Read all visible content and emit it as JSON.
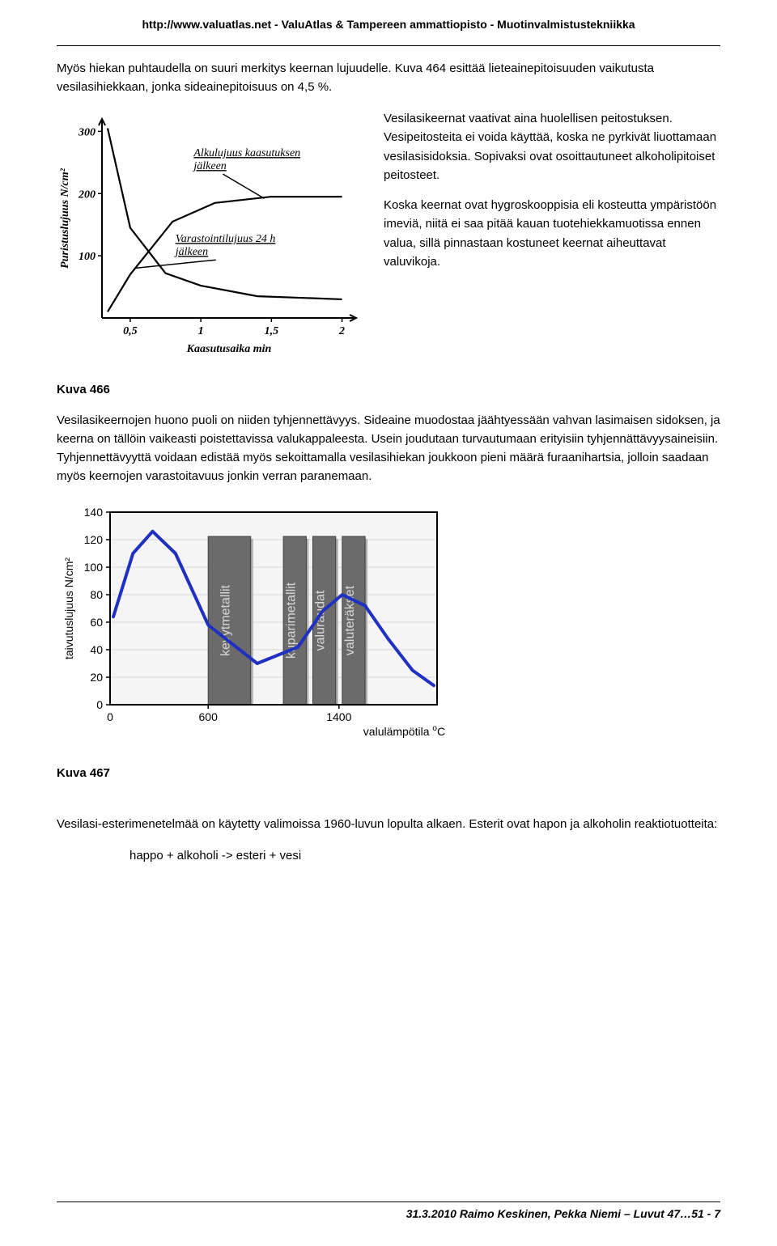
{
  "header": {
    "url": "http://www.valuatlas.net - ValuAtlas & Tampereen ammattiopisto - Muotinvalmistustekniikka"
  },
  "intro": {
    "p1": "Myös hiekan puhtaudella on suuri merkitys keernan lujuudelle. Kuva 464 esittää lieteainepitoisuuden vaikutusta vesilasihiekkaan, jonka sideainepitoisuus on 4,5 %."
  },
  "chart1": {
    "type": "line",
    "ylabel": "Puristuslujuus N/cm²",
    "xlabel": "Kaasutusaika min",
    "ylim": [
      0,
      320
    ],
    "ytick_step": 100,
    "xlim": [
      0.3,
      2.1
    ],
    "xticks": [
      0.5,
      1,
      1.5,
      2
    ],
    "label1": "Alkulujuus kaasutuksen jälkeen",
    "label2": "Varastointilujuus 24 h jälkeen",
    "line1_x": [
      0.34,
      0.5,
      0.75,
      1.0,
      1.4,
      2.0
    ],
    "line1_y": [
      305,
      145,
      72,
      52,
      35,
      30
    ],
    "line2_x": [
      0.34,
      0.5,
      0.8,
      1.1,
      1.5,
      2.0
    ],
    "line2_y": [
      10,
      70,
      155,
      185,
      195,
      195
    ],
    "stroke": "#000000",
    "font_style": "italic"
  },
  "right_col": {
    "p1": "Vesilasikeernat vaativat aina huolellisen peitostuksen. Vesipeitosteita ei voida käyttää, koska ne pyrkivät liuottamaan vesilasisidoksia. Sopivaksi ovat osoittautuneet alkoholipitoiset peitosteet.",
    "p2": "Koska keernat ovat hygroskooppisia eli kosteutta ympäristöön imeviä, niitä ei saa pitää kauan tuotehiekkamuotissa ennen valua, sillä pinnastaan kostuneet keernat aiheuttavat valuvikoja."
  },
  "fig1_label": "Kuva 466",
  "body": {
    "p1": "Vesilasikeernojen huono puoli on niiden tyhjennettävyys. Sideaine muodostaa jäähtyessään vahvan lasimaisen sidoksen, ja keerna on tällöin vaikeasti poistettavissa valukappaleesta. Usein joudutaan turvautumaan erityisiin tyhjennättävyysaineisiin. Tyhjennettävyyttä voidaan edistää myös sekoittamalla vesilasihiekan joukkoon pieni määrä furaanihartsia, jolloin saadaan myös keernojen varastoitavuus jonkin verran paranemaan."
  },
  "chart2": {
    "type": "line-bars",
    "ylabel": "taivutuslujuus N/cm²",
    "xlabel": "valulämpötila °C",
    "ylim": [
      0,
      140
    ],
    "ytick_step": 20,
    "xlim": [
      0,
      2000
    ],
    "xticks": [
      600,
      1400
    ],
    "background_color": "#ffffff",
    "plot_bg": "#f5f5f5",
    "grid_color": "#d8d8d8",
    "line_color": "#2030c0",
    "line_width": 4,
    "line_x": [
      20,
      140,
      260,
      400,
      600,
      900,
      1150,
      1300,
      1420,
      1560,
      1700,
      1850,
      1980
    ],
    "line_y": [
      64,
      110,
      126,
      110,
      58,
      30,
      42,
      68,
      80,
      72,
      48,
      25,
      14
    ],
    "bars": [
      {
        "label": "kevytmetallit",
        "x0": 600,
        "x1": 860,
        "fill": "#6b6b6b"
      },
      {
        "label": "kuparimetallit",
        "x0": 1060,
        "x1": 1200,
        "fill": "#6b6b6b"
      },
      {
        "label": "valuraudat",
        "x0": 1240,
        "x1": 1380,
        "fill": "#6b6b6b"
      },
      {
        "label": "valuteräkset",
        "x0": 1420,
        "x1": 1560,
        "fill": "#6b6b6b"
      }
    ],
    "bar_text_color": "#d9d9d9",
    "bar_border": "#404040",
    "axis_color": "#000000",
    "bar_shadow": "#b0b0b0"
  },
  "fig2_label": "Kuva 467",
  "bottom": {
    "p1": "Vesilasi-esterimenetelmää on käytetty valimoissa 1960-luvun lopulta alkaen. Esterit ovat hapon ja alkoholin reaktiotuotteita:",
    "eq": "happo + alkoholi -> esteri + vesi"
  },
  "footer": {
    "text": "31.3.2010 Raimo Keskinen, Pekka Niemi – Luvut 47…51 - 7"
  }
}
